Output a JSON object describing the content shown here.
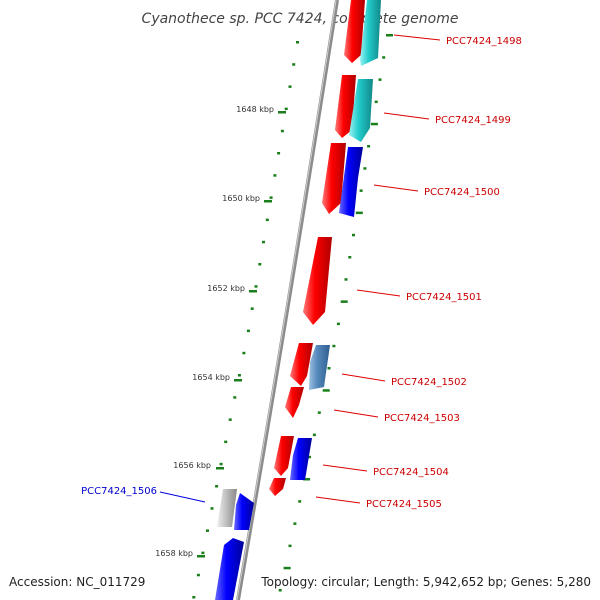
{
  "title": "Cyanothece sp. PCC 7424, complete genome",
  "footer": {
    "accession": "Accession: NC_011729",
    "summary": "Topology: circular; Length: 5,942,652 bp; Genes: 5,280"
  },
  "ruler": {
    "color": "#1a7f1a",
    "labels": [
      "1648 kbp",
      "1650 kbp",
      "1652 kbp",
      "1654 kbp",
      "1656 kbp",
      "1658 kbp"
    ]
  },
  "colors": {
    "backbone": "#8c8c8c",
    "forward_gene": "#ff0000",
    "reverse_gene": "#0000ff",
    "rna_gene": "#22cccc",
    "other_gene": "#5588bb",
    "pseudo_gene": "#bbbbbb",
    "label_forward": "#cc0000",
    "label_reverse": "#0000cc"
  },
  "labels": [
    {
      "text": "PCC7424_1498",
      "color": "#cc0000"
    },
    {
      "text": "PCC7424_1499",
      "color": "#cc0000"
    },
    {
      "text": "PCC7424_1500",
      "color": "#cc0000"
    },
    {
      "text": "PCC7424_1501",
      "color": "#cc0000"
    },
    {
      "text": "PCC7424_1502",
      "color": "#cc0000"
    },
    {
      "text": "PCC7424_1503",
      "color": "#cc0000"
    },
    {
      "text": "PCC7424_1504",
      "color": "#cc0000"
    },
    {
      "text": "PCC7424_1505",
      "color": "#cc0000"
    },
    {
      "text": "PCC7424_1506",
      "color": "#0000cc"
    }
  ]
}
